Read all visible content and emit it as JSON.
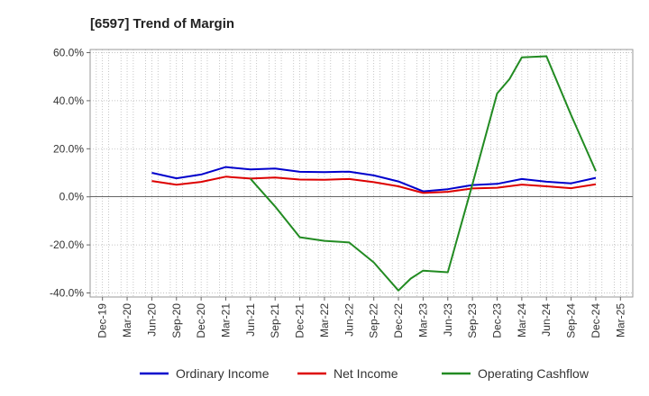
{
  "chart_data": {
    "type": "line",
    "title": "[6597]  Trend of Margin",
    "xlabel": "",
    "ylabel": "",
    "ylim": [
      -40,
      60
    ],
    "y_ticks": [
      "60.0%",
      "40.0%",
      "20.0%",
      "0.0%",
      "-20.0%",
      "-40.0%"
    ],
    "y_tick_values": [
      60,
      40,
      20,
      0,
      -20,
      -40
    ],
    "grid": true,
    "legend_position": "bottom",
    "categories": [
      "Dec-19",
      "Mar-20",
      "Jun-20",
      "Sep-20",
      "Dec-20",
      "Mar-21",
      "Jun-21",
      "Sep-21",
      "Dec-21",
      "Mar-22",
      "Jun-22",
      "Sep-22",
      "Dec-22",
      "Mar-23",
      "Jun-23",
      "Sep-23",
      "Dec-23",
      "Mar-24",
      "Jun-24",
      "Sep-24",
      "Dec-24",
      "Mar-25"
    ],
    "series": [
      {
        "name": "Ordinary Income",
        "color": "#0000cc",
        "values": [
          null,
          null,
          10.0,
          7.7,
          9.3,
          12.4,
          11.4,
          11.8,
          10.4,
          10.3,
          10.5,
          8.9,
          6.4,
          2.3,
          3.2,
          4.9,
          5.4,
          7.4,
          6.3,
          5.6,
          7.9,
          null
        ]
      },
      {
        "name": "Net Income",
        "color": "#dd0000",
        "values": [
          null,
          null,
          6.6,
          5.0,
          6.2,
          8.4,
          7.6,
          8.0,
          7.2,
          7.1,
          7.4,
          6.1,
          4.4,
          1.6,
          2.1,
          3.5,
          3.8,
          5.1,
          4.4,
          3.6,
          5.2,
          null
        ]
      },
      {
        "name": "Operating Cashflow",
        "color": "#228b22",
        "x": [
          6,
          7,
          8,
          9,
          10,
          11,
          12,
          12.5,
          13,
          14,
          15,
          16,
          16.5,
          17,
          18,
          19,
          20
        ],
        "values": [
          7.5,
          -4.0,
          -16.8,
          -18.3,
          -19.0,
          -27.3,
          -39.0,
          -34.0,
          -30.7,
          -31.4,
          5.2,
          43.0,
          49.0,
          58.0,
          58.5,
          34.0,
          10.7
        ]
      }
    ]
  }
}
